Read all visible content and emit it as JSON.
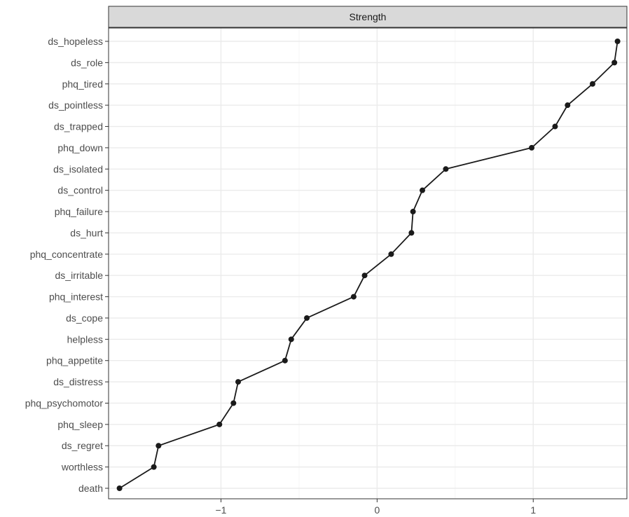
{
  "chart_data": {
    "type": "line",
    "facet_label": "Strength",
    "title": "",
    "xlabel": "",
    "ylabel": "",
    "xlim": [
      -1.72,
      1.6
    ],
    "x_ticks": [
      -1,
      0,
      1
    ],
    "x_tick_labels": [
      "−1",
      "0",
      "1"
    ],
    "categories": [
      "ds_hopeless",
      "ds_role",
      "phq_tired",
      "ds_pointless",
      "ds_trapped",
      "phq_down",
      "ds_isolated",
      "ds_control",
      "phq_failure",
      "ds_hurt",
      "phq_concentrate",
      "ds_irritable",
      "phq_interest",
      "ds_cope",
      "helpless",
      "phq_appetite",
      "ds_distress",
      "phq_psychomotor",
      "phq_sleep",
      "ds_regret",
      "worthless",
      "death"
    ],
    "series": [
      {
        "values": [
          1.54,
          1.52,
          1.38,
          1.22,
          1.14,
          0.99,
          0.44,
          0.29,
          0.23,
          0.22,
          0.09,
          -0.08,
          -0.15,
          -0.45,
          -0.55,
          -0.59,
          -0.89,
          -0.92,
          -1.01,
          -1.4,
          -1.43,
          -1.65
        ]
      }
    ],
    "grid": true,
    "legend": "none",
    "colors": {
      "line": "#1a1a1a",
      "point": "#1a1a1a",
      "grid_major": "#ebebeb",
      "grid_minor": "#f5f5f5",
      "panel_border": "#333333",
      "strip_fill": "#d9d9d9",
      "tick_text": "#4d4d4d"
    }
  }
}
